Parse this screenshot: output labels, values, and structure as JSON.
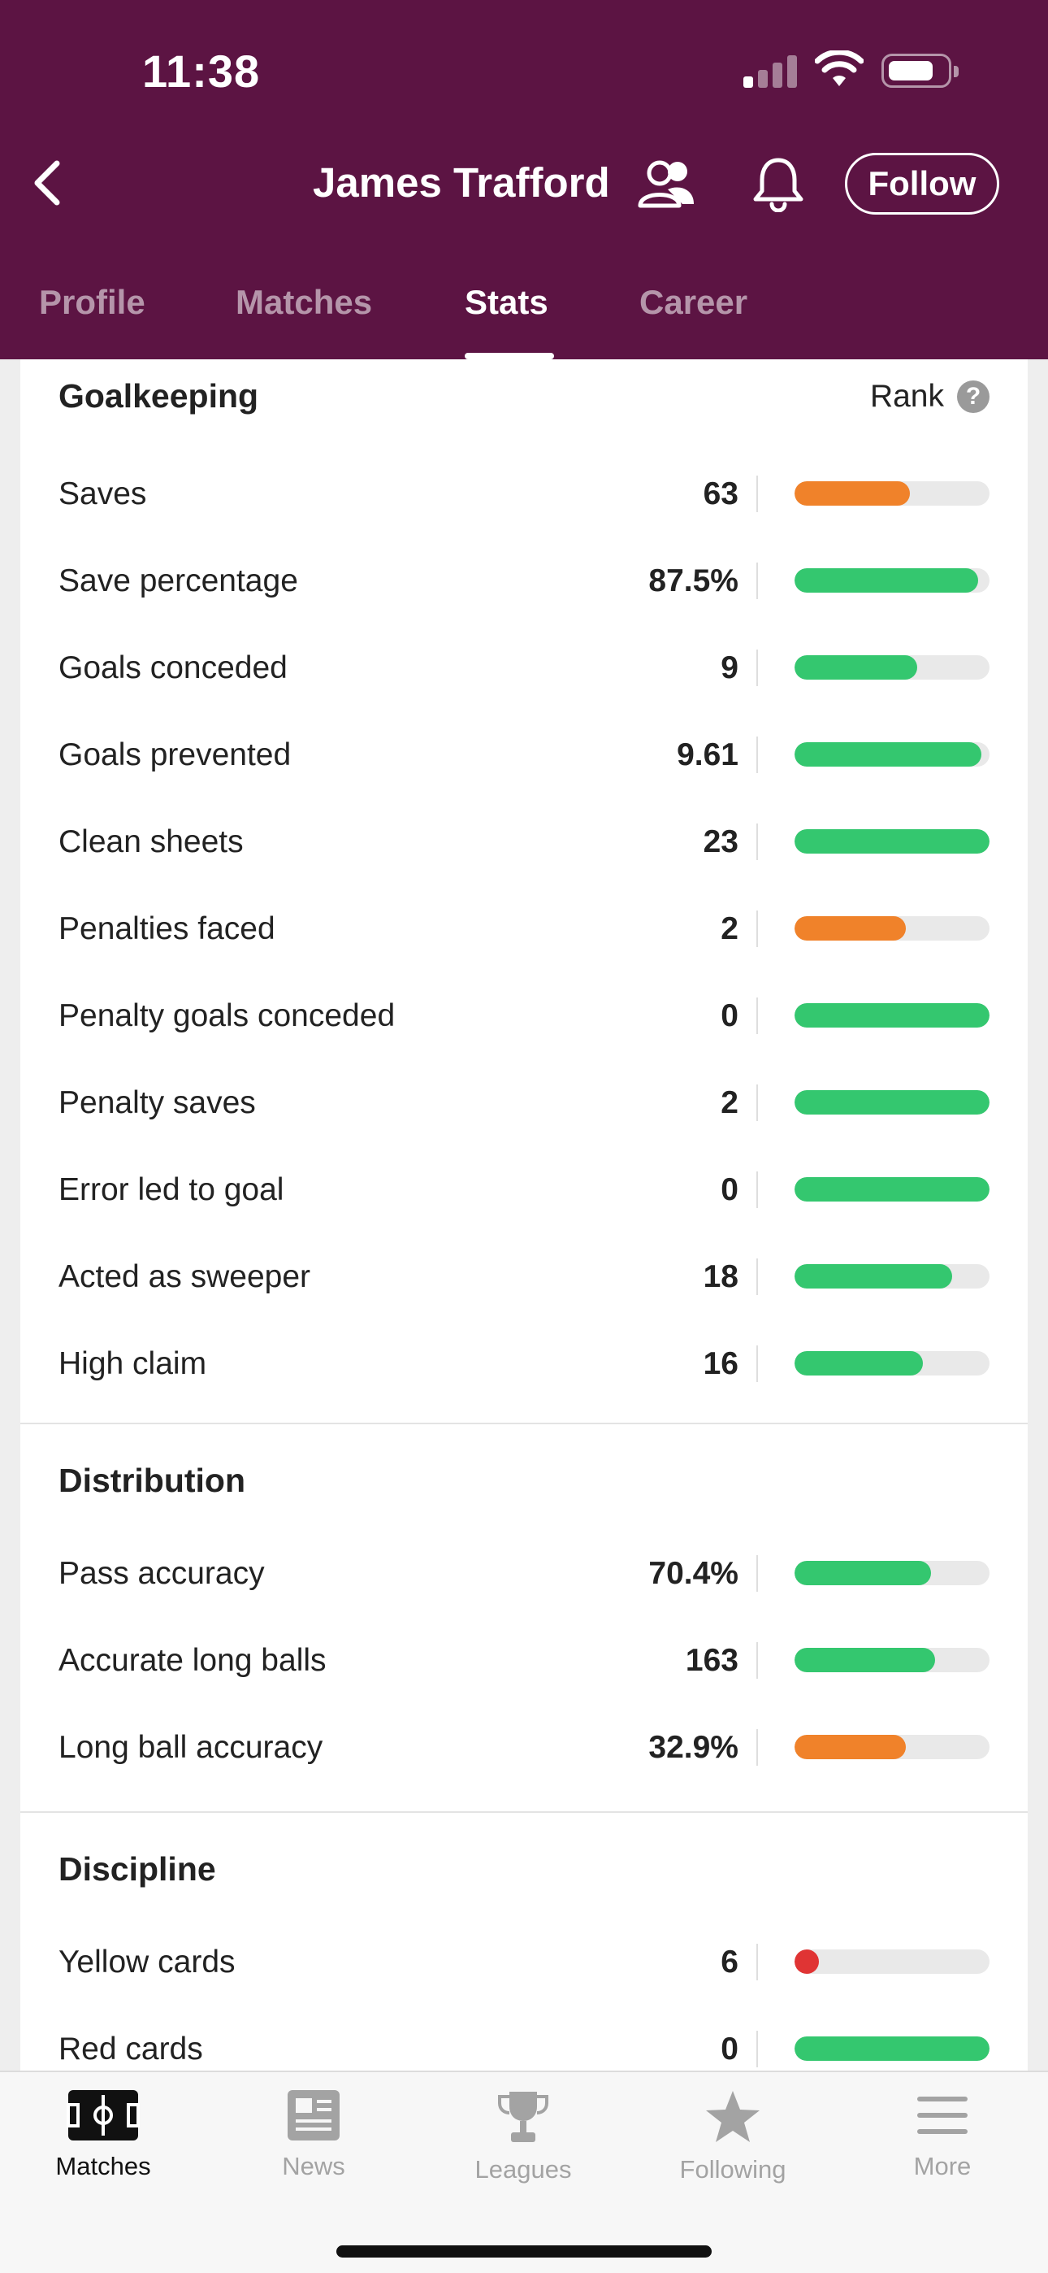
{
  "status_bar": {
    "time": "11:38",
    "signal_icon": "cellular-signal-icon",
    "wifi_icon": "wifi-icon",
    "battery_icon": "battery-icon"
  },
  "header": {
    "player_name": "James Trafford",
    "follow_label": "Follow",
    "background_color": "#5c1443",
    "icons": [
      "back-chevron-icon",
      "people-icon",
      "bell-icon"
    ]
  },
  "tabs": [
    {
      "label": "Profile",
      "active": false
    },
    {
      "label": "Matches",
      "active": false
    },
    {
      "label": "Stats",
      "active": true
    },
    {
      "label": "Career",
      "active": false
    }
  ],
  "rank_label": "Rank",
  "help_glyph": "?",
  "colors": {
    "good": "#34c76f",
    "average": "#f0822a",
    "poor": "#e03434",
    "track": "#e9e9e9"
  },
  "sections": [
    {
      "title": "Goalkeeping",
      "stats": [
        {
          "label": "Saves",
          "value": "63",
          "rank_fraction": 0.59,
          "color": "average"
        },
        {
          "label": "Save percentage",
          "value": "87.5%",
          "rank_fraction": 0.94,
          "color": "good"
        },
        {
          "label": "Goals conceded",
          "value": "9",
          "rank_fraction": 0.63,
          "color": "good"
        },
        {
          "label": "Goals prevented",
          "value": "9.61",
          "rank_fraction": 0.96,
          "color": "good"
        },
        {
          "label": "Clean sheets",
          "value": "23",
          "rank_fraction": 1.0,
          "color": "good"
        },
        {
          "label": "Penalties faced",
          "value": "2",
          "rank_fraction": 0.57,
          "color": "average"
        },
        {
          "label": "Penalty goals conceded",
          "value": "0",
          "rank_fraction": 1.0,
          "color": "good"
        },
        {
          "label": "Penalty saves",
          "value": "2",
          "rank_fraction": 1.0,
          "color": "good"
        },
        {
          "label": "Error led to goal",
          "value": "0",
          "rank_fraction": 1.0,
          "color": "good"
        },
        {
          "label": "Acted as sweeper",
          "value": "18",
          "rank_fraction": 0.81,
          "color": "good"
        },
        {
          "label": "High claim",
          "value": "16",
          "rank_fraction": 0.66,
          "color": "good"
        }
      ]
    },
    {
      "title": "Distribution",
      "stats": [
        {
          "label": "Pass accuracy",
          "value": "70.4%",
          "rank_fraction": 0.7,
          "color": "good"
        },
        {
          "label": "Accurate long balls",
          "value": "163",
          "rank_fraction": 0.72,
          "color": "good"
        },
        {
          "label": "Long ball accuracy",
          "value": "32.9%",
          "rank_fraction": 0.57,
          "color": "average"
        }
      ]
    },
    {
      "title": "Discipline",
      "stats": [
        {
          "label": "Yellow cards",
          "value": "6",
          "rank_fraction": 0.03,
          "color": "poor"
        },
        {
          "label": "Red cards",
          "value": "0",
          "rank_fraction": 1.0,
          "color": "good"
        }
      ]
    }
  ],
  "bottom_nav": [
    {
      "label": "Matches",
      "icon": "pitch-icon",
      "active": true
    },
    {
      "label": "News",
      "icon": "news-icon",
      "active": false
    },
    {
      "label": "Leagues",
      "icon": "trophy-icon",
      "active": false
    },
    {
      "label": "Following",
      "icon": "star-icon",
      "active": false
    },
    {
      "label": "More",
      "icon": "menu-icon",
      "active": false
    }
  ]
}
